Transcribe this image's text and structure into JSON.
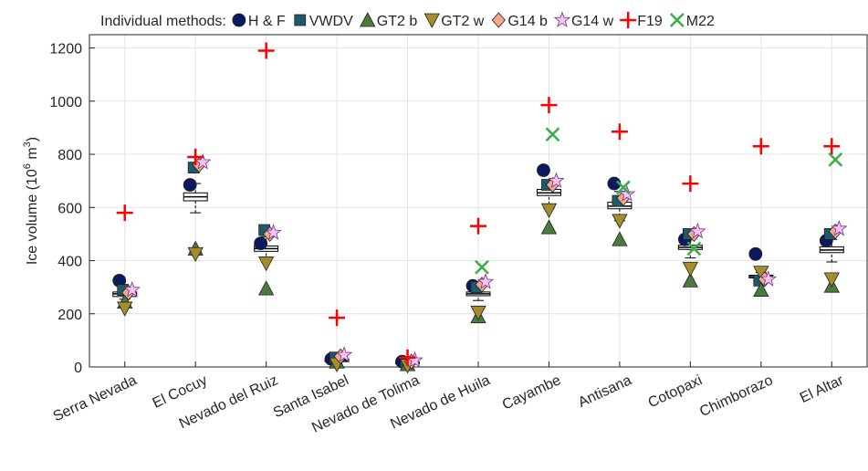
{
  "chart_data": {
    "type": "box_scatter",
    "legend_title": "Individual methods:",
    "ylabel_parts": [
      "Ice volume (10",
      "6",
      " m",
      "3",
      ")"
    ],
    "categories": [
      "Serra Nevada",
      "El Cocuy",
      "Nevado del Ruiz",
      "Santa Isabel",
      "Nevado de Tolima",
      "Nevado de Huila",
      "Cayambe",
      "Antisana",
      "Cotopaxi",
      "Chimborazo",
      "El Altar"
    ],
    "ylim": [
      0,
      1250
    ],
    "yticks": [
      0,
      200,
      400,
      600,
      800,
      1000,
      1200
    ],
    "grid": true,
    "boxes": [
      {
        "low": 255,
        "q1": 265,
        "median": 275,
        "q3": 282,
        "high": 295
      },
      {
        "low": 580,
        "q1": 625,
        "median": 640,
        "q3": 655,
        "high": 690
      },
      {
        "low": 400,
        "q1": 435,
        "median": 445,
        "q3": 455,
        "high": 490
      },
      {
        "low": 15,
        "q1": 20,
        "median": 25,
        "q3": 30,
        "high": 35
      },
      {
        "low": 8,
        "q1": 12,
        "median": 15,
        "q3": 18,
        "high": 22
      },
      {
        "low": 250,
        "q1": 268,
        "median": 275,
        "q3": 282,
        "high": 300
      },
      {
        "low": 595,
        "q1": 645,
        "median": 655,
        "q3": 668,
        "high": 700
      },
      {
        "low": 550,
        "q1": 595,
        "median": 605,
        "q3": 620,
        "high": 660
      },
      {
        "low": 410,
        "q1": 442,
        "median": 450,
        "q3": 458,
        "high": 490
      },
      {
        "low": 315,
        "q1": 335,
        "median": 340,
        "q3": 345,
        "high": 355
      },
      {
        "low": 395,
        "q1": 430,
        "median": 440,
        "q3": 452,
        "high": 480
      }
    ],
    "series": [
      {
        "name": "H & F",
        "symbol": "circle",
        "color": "#0b1a5e",
        "values": [
          325,
          685,
          465,
          30,
          20,
          305,
          740,
          690,
          480,
          425,
          475
        ]
      },
      {
        "name": "VWDV",
        "symbol": "square",
        "color": "#1d5a6a",
        "values": [
          290,
          750,
          515,
          35,
          18,
          300,
          685,
          625,
          500,
          325,
          500
        ]
      },
      {
        "name": "GT2 b",
        "symbol": "triangle-up",
        "color": "#4b7a3c",
        "values": [
          245,
          445,
          295,
          20,
          10,
          190,
          525,
          480,
          325,
          290,
          305
        ]
      },
      {
        "name": "GT2 w",
        "symbol": "triangle-down",
        "color": "#a58c2c",
        "values": [
          220,
          425,
          390,
          10,
          5,
          205,
          590,
          550,
          370,
          355,
          330
        ]
      },
      {
        "name": "G14 b",
        "symbol": "diamond",
        "color": "#f4a98a",
        "values": [
          280,
          760,
          500,
          40,
          20,
          310,
          685,
          635,
          500,
          330,
          510
        ]
      },
      {
        "name": "G14 w",
        "symbol": "star",
        "color": "#f2c4ef",
        "values": [
          290,
          770,
          505,
          45,
          25,
          320,
          700,
          650,
          510,
          330,
          520
        ]
      },
      {
        "name": "F19",
        "symbol": "plus",
        "color": "#ff0000",
        "values": [
          580,
          790,
          1190,
          185,
          35,
          530,
          985,
          885,
          690,
          830,
          830
        ]
      },
      {
        "name": "M22",
        "symbol": "x",
        "color": "#3aad48",
        "values": [
          null,
          null,
          null,
          null,
          null,
          375,
          875,
          675,
          445,
          null,
          780
        ]
      }
    ]
  }
}
